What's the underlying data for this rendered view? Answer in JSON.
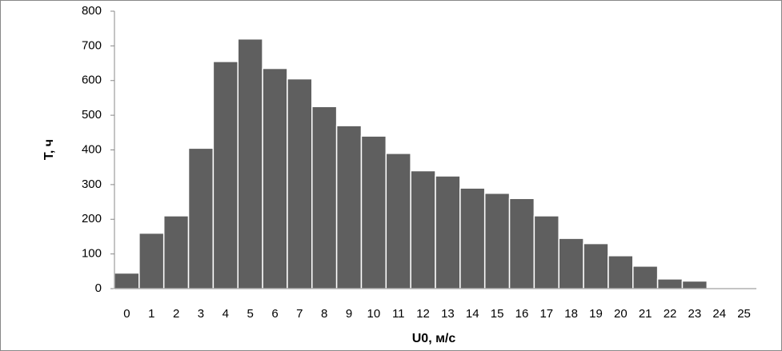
{
  "chart_data": {
    "type": "bar",
    "categories": [
      "0",
      "1",
      "2",
      "3",
      "4",
      "5",
      "6",
      "7",
      "8",
      "9",
      "10",
      "11",
      "12",
      "13",
      "14",
      "15",
      "16",
      "17",
      "18",
      "19",
      "20",
      "21",
      "22",
      "23",
      "24",
      "25"
    ],
    "values": [
      45,
      160,
      210,
      405,
      655,
      720,
      635,
      605,
      525,
      470,
      440,
      390,
      340,
      325,
      290,
      275,
      260,
      210,
      145,
      130,
      95,
      65,
      28,
      22,
      0,
      0
    ],
    "color": "#5f5f5f",
    "x_label": "U0, м/с",
    "y_label": "T, ч",
    "ylim": [
      0,
      800
    ],
    "yticks": [
      0,
      100,
      200,
      300,
      400,
      500,
      600,
      700,
      800
    ],
    "grid": false
  }
}
